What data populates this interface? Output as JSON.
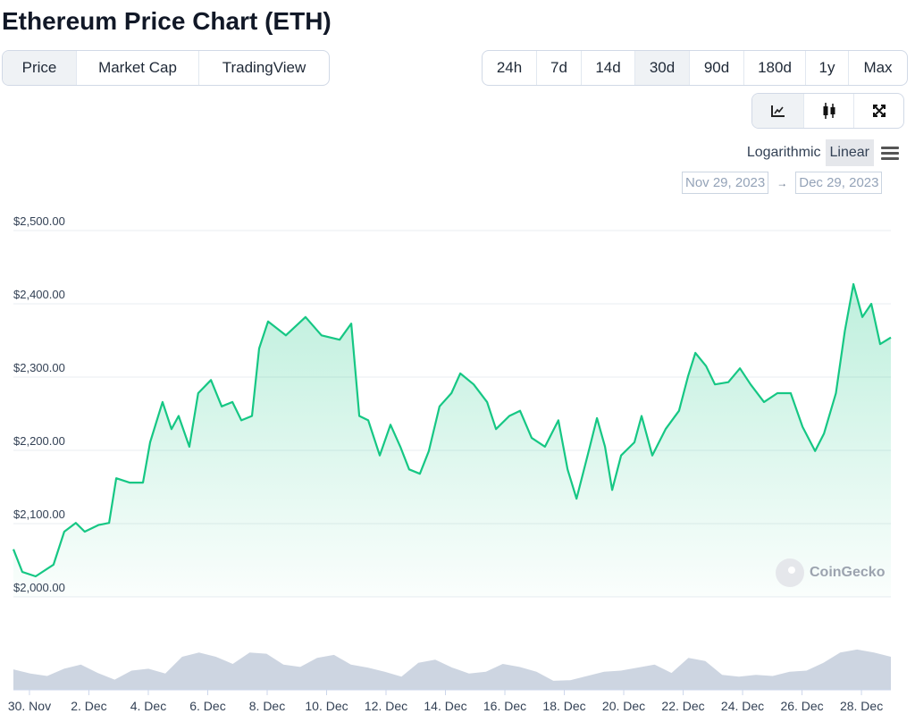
{
  "title": "Ethereum Price Chart (ETH)",
  "tabs": [
    {
      "label": "Price",
      "active": true
    },
    {
      "label": "Market Cap",
      "active": false
    },
    {
      "label": "TradingView",
      "active": false
    }
  ],
  "ranges": [
    {
      "label": "24h",
      "active": false
    },
    {
      "label": "7d",
      "active": false
    },
    {
      "label": "14d",
      "active": false
    },
    {
      "label": "30d",
      "active": true
    },
    {
      "label": "90d",
      "active": false
    },
    {
      "label": "180d",
      "active": false
    },
    {
      "label": "1y",
      "active": false
    },
    {
      "label": "Max",
      "active": false
    }
  ],
  "chart_types": [
    "line-chart-icon",
    "candlestick-icon",
    "fullscreen-icon"
  ],
  "scale": {
    "log": "Logarithmic",
    "linear": "Linear",
    "active": "Linear"
  },
  "date_range": {
    "from": "Nov 29, 2023",
    "to": "Dec 29, 2023",
    "arrow": "→"
  },
  "watermark": "CoinGecko",
  "colors": {
    "line": "#16c784",
    "volume": "#cdd5e1",
    "grid": "#e8ecf1"
  },
  "chart_data": {
    "type": "line",
    "title": "Ethereum Price Chart (ETH)",
    "x_unit": "days since 30 Nov 2023",
    "xlim": [
      -0.54,
      28.99
    ],
    "ylim": [
      2000,
      2500
    ],
    "yticks": [
      2000,
      2100,
      2200,
      2300,
      2400,
      2500
    ],
    "ytick_labels": [
      "$2,000.00",
      "$2,100.00",
      "$2,200.00",
      "$2,300.00",
      "$2,400.00",
      "$2,500.00"
    ],
    "xticks": [
      0,
      2,
      4,
      6,
      8,
      10,
      12,
      14,
      16,
      18,
      20,
      22,
      24,
      26,
      28
    ],
    "xtick_labels": [
      "30. Nov",
      "2. Dec",
      "4. Dec",
      "6. Dec",
      "8. Dec",
      "10. Dec",
      "12. Dec",
      "14. Dec",
      "16. Dec",
      "18. Dec",
      "20. Dec",
      "22. Dec",
      "24. Dec",
      "26. Dec",
      "28. Dec"
    ],
    "grid": true,
    "series": [
      {
        "name": "Price",
        "points": [
          [
            -0.54,
            2065
          ],
          [
            -0.24,
            2034
          ],
          [
            0.21,
            2028
          ],
          [
            0.81,
            2044
          ],
          [
            1.17,
            2089
          ],
          [
            1.56,
            2101
          ],
          [
            1.86,
            2089
          ],
          [
            2.32,
            2098
          ],
          [
            2.68,
            2101
          ],
          [
            2.92,
            2162
          ],
          [
            3.37,
            2156
          ],
          [
            3.82,
            2156
          ],
          [
            4.06,
            2211
          ],
          [
            4.48,
            2266
          ],
          [
            4.78,
            2229
          ],
          [
            5.02,
            2247
          ],
          [
            5.38,
            2205
          ],
          [
            5.68,
            2278
          ],
          [
            6.11,
            2296
          ],
          [
            6.47,
            2260
          ],
          [
            6.83,
            2266
          ],
          [
            7.13,
            2241
          ],
          [
            7.49,
            2247
          ],
          [
            7.73,
            2339
          ],
          [
            8.03,
            2376
          ],
          [
            8.63,
            2357
          ],
          [
            9.29,
            2382
          ],
          [
            9.83,
            2357
          ],
          [
            10.44,
            2351
          ],
          [
            10.83,
            2373
          ],
          [
            11.1,
            2247
          ],
          [
            11.4,
            2241
          ],
          [
            11.79,
            2193
          ],
          [
            12.15,
            2235
          ],
          [
            12.48,
            2205
          ],
          [
            12.78,
            2174
          ],
          [
            13.14,
            2168
          ],
          [
            13.44,
            2199
          ],
          [
            13.8,
            2260
          ],
          [
            14.2,
            2278
          ],
          [
            14.5,
            2305
          ],
          [
            14.95,
            2290
          ],
          [
            15.4,
            2266
          ],
          [
            15.7,
            2229
          ],
          [
            16.15,
            2247
          ],
          [
            16.51,
            2254
          ],
          [
            16.9,
            2217
          ],
          [
            17.35,
            2205
          ],
          [
            17.8,
            2241
          ],
          [
            18.11,
            2174
          ],
          [
            18.41,
            2134
          ],
          [
            18.86,
            2205
          ],
          [
            19.1,
            2244
          ],
          [
            19.37,
            2205
          ],
          [
            19.61,
            2146
          ],
          [
            19.91,
            2193
          ],
          [
            20.36,
            2211
          ],
          [
            20.6,
            2247
          ],
          [
            20.96,
            2193
          ],
          [
            21.41,
            2229
          ],
          [
            21.86,
            2254
          ],
          [
            22.17,
            2302
          ],
          [
            22.41,
            2333
          ],
          [
            22.77,
            2315
          ],
          [
            23.07,
            2290
          ],
          [
            23.52,
            2293
          ],
          [
            23.91,
            2312
          ],
          [
            24.27,
            2290
          ],
          [
            24.72,
            2266
          ],
          [
            25.17,
            2278
          ],
          [
            25.62,
            2278
          ],
          [
            26.02,
            2232
          ],
          [
            26.44,
            2199
          ],
          [
            26.74,
            2223
          ],
          [
            27.14,
            2278
          ],
          [
            27.44,
            2363
          ],
          [
            27.73,
            2427
          ],
          [
            28.03,
            2382
          ],
          [
            28.33,
            2400
          ],
          [
            28.63,
            2345
          ],
          [
            28.99,
            2354
          ]
        ]
      },
      {
        "name": "Volume (relative)",
        "values": [
          34,
          27,
          23,
          35,
          42,
          28,
          17,
          32,
          35,
          27,
          55,
          62,
          55,
          43,
          62,
          60,
          42,
          38,
          53,
          58,
          42,
          37,
          30,
          22,
          45,
          50,
          37,
          27,
          30,
          43,
          38,
          30,
          15,
          16,
          23,
          30,
          32,
          37,
          42,
          28,
          53,
          48,
          25,
          22,
          25,
          23,
          30,
          32,
          45,
          62,
          67,
          62,
          55
        ]
      }
    ]
  }
}
